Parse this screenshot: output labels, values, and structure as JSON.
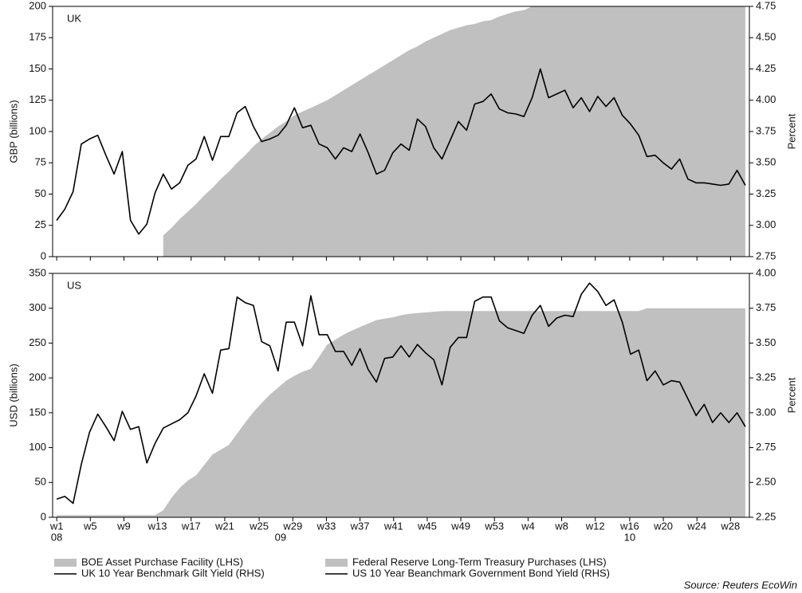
{
  "chart_data": [
    {
      "type": "area-line",
      "label": "UK",
      "ylabel": "GBP (billions)",
      "y2label": "Percent",
      "x": [
        0,
        1,
        2,
        3,
        4,
        5,
        6,
        7,
        8,
        9,
        10,
        11,
        12,
        13,
        14,
        15,
        16,
        17,
        18,
        19,
        20,
        21,
        22,
        23,
        24,
        25,
        26,
        27,
        28,
        29,
        30,
        31,
        32,
        33,
        34,
        35,
        36,
        37,
        38,
        39,
        40,
        41,
        42,
        43,
        44,
        45,
        46,
        47,
        48,
        49,
        50,
        51,
        52,
        53,
        54,
        55,
        56,
        57,
        58,
        59,
        60,
        61,
        62,
        63,
        64,
        65,
        66,
        67,
        68,
        69,
        70,
        71,
        72,
        73,
        74,
        75,
        76,
        77,
        78,
        79,
        80,
        81,
        82,
        83,
        84
      ],
      "xlim": [
        -0.5,
        84.5
      ],
      "ylim": [
        0,
        200
      ],
      "yticks": [
        0,
        25,
        50,
        75,
        100,
        125,
        150,
        175,
        200
      ],
      "y2lim": [
        2.75,
        4.75
      ],
      "y2ticks": [
        2.75,
        {
          "value": 3,
          "label": "3.00"
        },
        3.25,
        {
          "value": 3.5,
          "label": "3.50"
        },
        3.75,
        {
          "value": 4,
          "label": "4.00"
        },
        4.25,
        {
          "value": 4.5,
          "label": "4.50"
        },
        4.75
      ],
      "series": [
        {
          "name": "BOE Asset Purchase Facility (LHS)",
          "kind": "area",
          "color": "#c0c0c0",
          "values": [
            null,
            null,
            null,
            null,
            null,
            null,
            null,
            null,
            null,
            null,
            null,
            null,
            null,
            17,
            23,
            30,
            36,
            42,
            49,
            55,
            62,
            68,
            75,
            81,
            88,
            94,
            99,
            104,
            108,
            113,
            116,
            119,
            122,
            125,
            129,
            133,
            137,
            141,
            145,
            149,
            153,
            157,
            161,
            165,
            168,
            172,
            175,
            178,
            181,
            183,
            185,
            186,
            188,
            189,
            192,
            194,
            196,
            197,
            200,
            200,
            200,
            200,
            200,
            200,
            200,
            200,
            200,
            200,
            200,
            200,
            200,
            200,
            200,
            200,
            200,
            200,
            200,
            200,
            200,
            200,
            200,
            200,
            200,
            200,
            200
          ]
        },
        {
          "name": "UK 10 Year Benchmark Gilt Yield (RHS)",
          "kind": "line",
          "axis": "y2",
          "color": "#000000",
          "values": [
            3.04,
            3.13,
            3.27,
            3.65,
            3.69,
            3.72,
            3.56,
            3.41,
            3.59,
            3.04,
            2.93,
            3.01,
            3.26,
            3.41,
            3.29,
            3.34,
            3.48,
            3.53,
            3.71,
            3.52,
            3.71,
            3.71,
            3.9,
            3.95,
            3.79,
            3.67,
            3.69,
            3.72,
            3.8,
            3.94,
            3.78,
            3.8,
            3.65,
            3.62,
            3.53,
            3.62,
            3.59,
            3.73,
            3.58,
            3.41,
            3.44,
            3.58,
            3.65,
            3.6,
            3.85,
            3.79,
            3.62,
            3.53,
            3.68,
            3.83,
            3.76,
            3.97,
            3.99,
            4.05,
            3.93,
            3.9,
            3.89,
            3.87,
            4.02,
            4.25,
            4.02,
            4.05,
            4.08,
            3.94,
            4.02,
            3.91,
            4.03,
            3.95,
            4.02,
            3.88,
            3.81,
            3.72,
            3.55,
            3.56,
            3.5,
            3.45,
            3.53,
            3.37,
            3.34,
            3.34,
            3.33,
            3.32,
            3.33,
            3.44,
            3.32
          ]
        }
      ]
    },
    {
      "type": "area-line",
      "label": "US",
      "ylabel": "USD (billions)",
      "y2label": "Percent",
      "x": [
        0,
        1,
        2,
        3,
        4,
        5,
        6,
        7,
        8,
        9,
        10,
        11,
        12,
        13,
        14,
        15,
        16,
        17,
        18,
        19,
        20,
        21,
        22,
        23,
        24,
        25,
        26,
        27,
        28,
        29,
        30,
        31,
        32,
        33,
        34,
        35,
        36,
        37,
        38,
        39,
        40,
        41,
        42,
        43,
        44,
        45,
        46,
        47,
        48,
        49,
        50,
        51,
        52,
        53,
        54,
        55,
        56,
        57,
        58,
        59,
        60,
        61,
        62,
        63,
        64,
        65,
        66,
        67,
        68,
        69,
        70,
        71,
        72,
        73,
        74,
        75,
        76,
        77,
        78,
        79,
        80,
        81,
        82,
        83,
        84
      ],
      "xlim": [
        -0.5,
        84.5
      ],
      "xticks": [
        {
          "value": 0,
          "label": "w1"
        },
        {
          "value": 4.1,
          "label": "w5"
        },
        {
          "value": 8.2,
          "label": "w9"
        },
        {
          "value": 12.3,
          "label": "w13"
        },
        {
          "value": 16.4,
          "label": "w17"
        },
        {
          "value": 20.5,
          "label": "w21"
        },
        {
          "value": 24.7,
          "label": "w25"
        },
        {
          "value": 28.8,
          "label": "w29"
        },
        {
          "value": 32.9,
          "label": "w33"
        },
        {
          "value": 37,
          "label": "w37"
        },
        {
          "value": 41.1,
          "label": "w41"
        },
        {
          "value": 45.2,
          "label": "w45"
        },
        {
          "value": 49.3,
          "label": "w49"
        },
        {
          "value": 53.4,
          "label": "w53"
        },
        {
          "value": 57.5,
          "label": "w4"
        },
        {
          "value": 61.6,
          "label": "w8"
        },
        {
          "value": 65.7,
          "label": "w12"
        },
        {
          "value": 69.9,
          "label": "w16"
        },
        {
          "value": 74,
          "label": "w20"
        },
        {
          "value": 78.1,
          "label": "w24"
        },
        {
          "value": 82.2,
          "label": "w28"
        }
      ],
      "year_ticks": [
        {
          "value": 0,
          "label": "08"
        },
        {
          "value": 27.3,
          "label": "09"
        },
        {
          "value": 69.9,
          "label": "10"
        }
      ],
      "ylim": [
        0,
        350
      ],
      "yticks": [
        0,
        50,
        100,
        150,
        200,
        250,
        300,
        350
      ],
      "y2lim": [
        2.25,
        4.0
      ],
      "y2ticks": [
        2.25,
        {
          "value": 2.5,
          "label": "2.50"
        },
        2.75,
        {
          "value": 3,
          "label": "3.00"
        },
        3.25,
        {
          "value": 3.5,
          "label": "3.50"
        },
        3.75,
        {
          "value": 4,
          "label": "4.00"
        }
      ],
      "series": [
        {
          "name": "Federal Reserve Long-Term Treasury Purchases (LHS)",
          "kind": "area",
          "color": "#c0c0c0",
          "values": [
            3,
            3,
            3,
            3,
            3,
            3,
            3,
            3,
            3,
            3,
            3,
            3,
            3,
            10,
            28,
            42,
            53,
            60,
            75,
            90,
            97,
            104,
            120,
            136,
            151,
            164,
            176,
            186,
            196,
            203,
            209,
            213,
            230,
            248,
            255,
            262,
            268,
            273,
            278,
            283,
            285,
            287,
            290,
            292,
            293,
            294,
            295,
            296,
            296,
            296,
            296,
            296,
            296,
            296,
            296,
            296,
            296,
            296,
            296,
            296,
            296,
            296,
            296,
            296,
            296,
            296,
            296,
            296,
            296,
            296,
            296,
            296,
            300,
            300,
            300,
            300,
            300,
            300,
            300,
            300,
            300,
            300,
            300,
            300,
            300
          ]
        },
        {
          "name": "US 10 Year Beanchmark Government Bond Yield (RHS)",
          "kind": "line",
          "axis": "y2",
          "color": "#000000",
          "values": [
            2.38,
            2.4,
            2.35,
            2.63,
            2.86,
            2.99,
            2.9,
            2.8,
            3.01,
            2.88,
            2.9,
            2.64,
            2.78,
            2.89,
            2.92,
            2.95,
            3.0,
            3.12,
            3.28,
            3.14,
            3.45,
            3.46,
            3.83,
            3.79,
            3.77,
            3.51,
            3.48,
            3.3,
            3.65,
            3.65,
            3.48,
            3.84,
            3.56,
            3.56,
            3.44,
            3.44,
            3.34,
            3.46,
            3.31,
            3.22,
            3.39,
            3.4,
            3.48,
            3.4,
            3.49,
            3.43,
            3.38,
            3.2,
            3.47,
            3.54,
            3.54,
            3.8,
            3.83,
            3.83,
            3.66,
            3.61,
            3.59,
            3.57,
            3.7,
            3.77,
            3.62,
            3.68,
            3.7,
            3.69,
            3.85,
            3.93,
            3.87,
            3.77,
            3.81,
            3.65,
            3.42,
            3.45,
            3.23,
            3.3,
            3.2,
            3.23,
            3.22,
            3.1,
            2.98,
            3.06,
            2.93,
            3.0,
            2.93,
            3.0,
            2.9
          ]
        }
      ]
    }
  ],
  "source": "Source: Reuters EcoWin"
}
